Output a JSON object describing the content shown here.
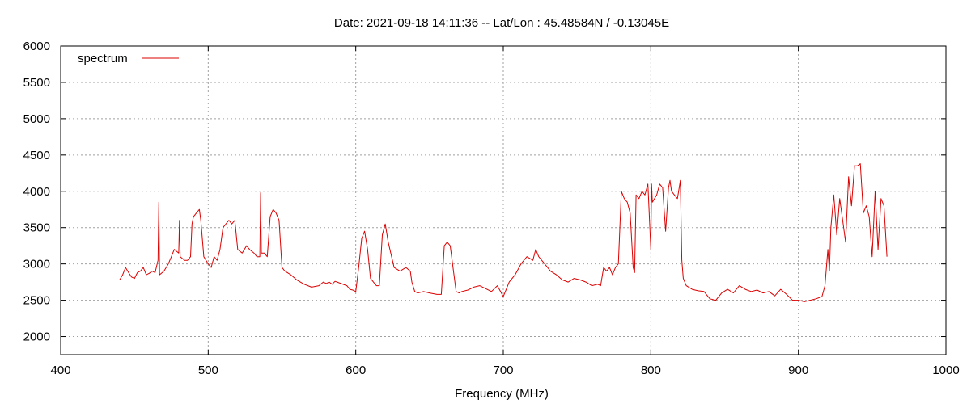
{
  "chart_data": {
    "type": "line",
    "title": "Date: 2021-09-18 14:11:36  --  Lat/Lon : 45.48584N / -0.13045E",
    "xlabel": "Frequency (MHz)",
    "ylabel": "",
    "xlim": [
      400,
      1000
    ],
    "ylim": [
      1750,
      6000
    ],
    "xticks": [
      400,
      500,
      600,
      700,
      800,
      900,
      1000
    ],
    "yticks": [
      2000,
      2500,
      3000,
      3500,
      4000,
      4500,
      5000,
      5500,
      6000
    ],
    "grid": true,
    "legend_position": "top-left",
    "series": [
      {
        "name": "spectrum",
        "color": "#dd0000",
        "x": [
          440,
          442,
          444,
          446,
          448,
          450,
          452,
          454,
          456,
          458,
          460,
          462,
          464,
          466,
          466.5,
          467,
          470,
          473,
          475,
          477,
          480,
          480.5,
          481,
          484,
          486,
          488,
          489,
          490,
          492,
          494,
          495,
          497,
          500,
          502,
          504,
          506,
          508,
          510,
          512,
          514,
          516,
          518,
          520,
          523,
          526,
          528,
          531,
          533,
          535,
          535.5,
          536,
          538,
          540,
          542,
          544,
          546,
          548,
          550,
          552,
          556,
          560,
          565,
          570,
          575,
          578,
          580,
          582,
          584,
          586,
          590,
          594,
          596,
          598,
          600,
          602,
          604,
          606,
          608,
          610,
          612,
          614,
          616,
          618,
          620,
          622,
          626,
          630,
          634,
          637,
          638,
          640,
          642,
          646,
          650,
          655,
          658,
          660,
          662,
          664,
          668,
          670,
          672,
          676,
          680,
          684,
          688,
          692,
          696,
          700,
          704,
          708,
          712,
          716,
          720,
          722,
          724,
          728,
          732,
          736,
          740,
          744,
          748,
          752,
          756,
          760,
          764,
          766,
          768,
          770,
          772,
          774,
          776,
          778,
          780,
          782,
          784,
          786,
          788,
          789,
          790,
          792,
          794,
          796,
          798,
          800,
          800.5,
          801,
          804,
          806,
          808,
          810,
          812,
          813,
          814,
          816,
          818,
          820,
          821,
          822,
          824,
          828,
          832,
          836,
          840,
          844,
          848,
          852,
          856,
          860,
          864,
          868,
          872,
          876,
          880,
          884,
          888,
          892,
          896,
          900,
          904,
          908,
          912,
          916,
          918,
          920,
          921,
          922,
          924,
          926,
          928,
          930,
          932,
          934,
          936,
          938,
          940,
          942,
          944,
          946,
          948,
          950,
          952,
          954,
          956,
          958,
          960
        ],
        "values": [
          2780,
          2850,
          2950,
          2880,
          2820,
          2800,
          2880,
          2900,
          2950,
          2850,
          2870,
          2900,
          2880,
          3050,
          3850,
          2850,
          2900,
          3000,
          3100,
          3200,
          3150,
          3600,
          3100,
          3050,
          3050,
          3100,
          3550,
          3650,
          3700,
          3750,
          3600,
          3100,
          3000,
          2950,
          3100,
          3050,
          3200,
          3500,
          3550,
          3600,
          3550,
          3600,
          3200,
          3150,
          3250,
          3200,
          3150,
          3100,
          3100,
          3980,
          3150,
          3150,
          3100,
          3650,
          3750,
          3700,
          3600,
          2950,
          2900,
          2850,
          2780,
          2720,
          2680,
          2700,
          2750,
          2730,
          2750,
          2720,
          2760,
          2730,
          2700,
          2650,
          2640,
          2620,
          2950,
          3350,
          3450,
          3200,
          2800,
          2750,
          2700,
          2700,
          3400,
          3550,
          3300,
          2950,
          2900,
          2950,
          2900,
          2750,
          2620,
          2600,
          2620,
          2600,
          2580,
          2580,
          3250,
          3300,
          3250,
          2620,
          2600,
          2620,
          2640,
          2680,
          2700,
          2660,
          2620,
          2700,
          2550,
          2750,
          2850,
          3000,
          3100,
          3050,
          3200,
          3100,
          3000,
          2900,
          2850,
          2780,
          2750,
          2800,
          2780,
          2750,
          2700,
          2720,
          2700,
          2950,
          2900,
          2950,
          2850,
          2950,
          3000,
          4000,
          3900,
          3850,
          3700,
          2950,
          2880,
          3950,
          3900,
          4000,
          3950,
          4100,
          3200,
          4100,
          3850,
          3950,
          4100,
          4050,
          3450,
          4050,
          4150,
          4000,
          3950,
          3900,
          4150,
          3050,
          2800,
          2700,
          2650,
          2630,
          2620,
          2520,
          2500,
          2600,
          2650,
          2600,
          2700,
          2650,
          2620,
          2640,
          2600,
          2620,
          2560,
          2650,
          2580,
          2500,
          2500,
          2480,
          2500,
          2520,
          2550,
          2700,
          3200,
          2900,
          3500,
          3950,
          3400,
          3900,
          3600,
          3300,
          4200,
          3800,
          4350,
          4350,
          4380,
          3700,
          3800,
          3650,
          3100,
          4000,
          3200,
          3900,
          3800,
          3100
        ]
      }
    ]
  }
}
